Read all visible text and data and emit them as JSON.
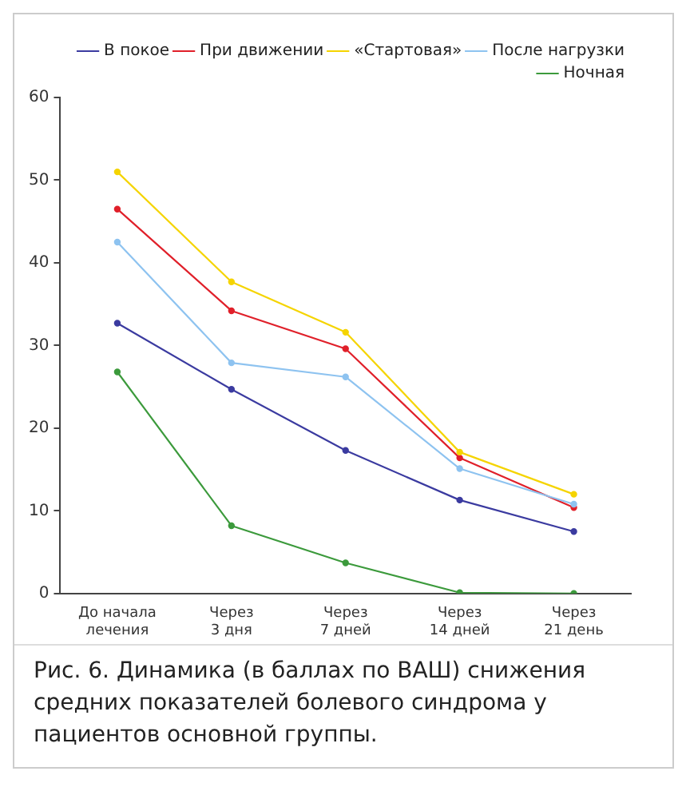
{
  "chart_data": {
    "type": "line",
    "categories": [
      "До начала\nлечения",
      "Через\n3 дня",
      "Через\n7 дней",
      "Через\n14 дней",
      "Через\n21 день"
    ],
    "series": [
      {
        "name": "В покое",
        "color": "#3b3ba0",
        "values": [
          32.7,
          24.7,
          17.3,
          11.3,
          7.5
        ]
      },
      {
        "name": "При движении",
        "color": "#e0202a",
        "values": [
          46.5,
          34.2,
          29.6,
          16.4,
          10.4
        ]
      },
      {
        "name": "«Стартовая»",
        "color": "#f5d400",
        "values": [
          51,
          37.7,
          31.6,
          17.1,
          12
        ]
      },
      {
        "name": "После нагрузки",
        "color": "#8ec3f0",
        "values": [
          42.5,
          27.9,
          26.2,
          15.1,
          10.8
        ]
      },
      {
        "name": "Ночная",
        "color": "#3c9a3c",
        "values": [
          26.8,
          8.2,
          3.7,
          0.1,
          0
        ]
      }
    ],
    "ylim": [
      0,
      60
    ],
    "yticks": [
      0,
      10,
      20,
      30,
      40,
      50,
      60
    ],
    "grid": false,
    "legend": "top right",
    "marker": "circle",
    "line_style": "solid",
    "annotations": [
      "Рис. 6. Динамика (в баллах по ВАШ) снижения средних показателей болевого синдрома у пациентов основной группы."
    ]
  }
}
